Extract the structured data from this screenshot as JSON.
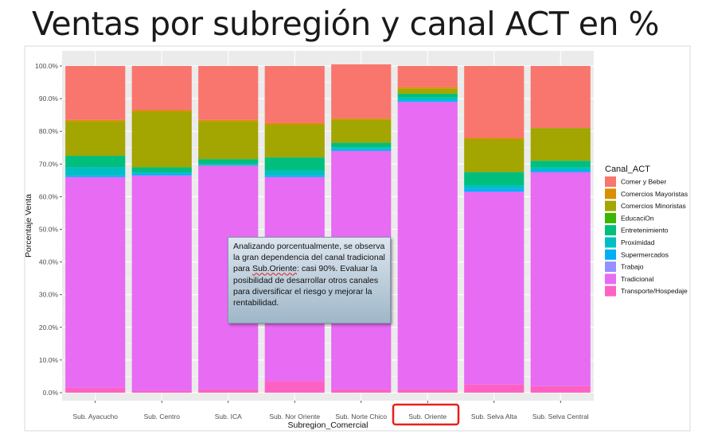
{
  "slide": {
    "title": "Ventas por subregión y canal ACT en %"
  },
  "callout": {
    "text_before": "Analizando porcentualmente, se observa la gran dependencia del canal tradicional para ",
    "text_highlight": "Sub.Oriente",
    "text_after": ": casi 90%. Evaluar la posibilidad de desarrollar otros canales para diversificar el riesgo y mejorar la rentabilidad."
  },
  "chart_data": {
    "type": "bar",
    "stacked": true,
    "xlabel": "Subregion_Comercial",
    "ylabel": "Porcentaje Venta",
    "ylim": [
      0,
      100
    ],
    "yticks": [
      "0.0%",
      "10.0%",
      "20.0%",
      "30.0%",
      "40.0%",
      "50.0%",
      "60.0%",
      "70.0%",
      "80.0%",
      "90.0%",
      "100.0%"
    ],
    "grid": true,
    "legend_title": "Canal_ACT",
    "legend_position": "right",
    "highlighted_category": "Sub. Oriente",
    "highlight_color": "#e8201c",
    "categories": [
      "Sub. Ayacucho",
      "Sub. Centro",
      "Sub. ICA",
      "Sub. Nor Oriente",
      "Sub. Norte Chico",
      "Sub. Oriente",
      "Sub. Selva Alta",
      "Sub. Selva Central"
    ],
    "series": [
      {
        "name": "Transporte/Hospedaje",
        "color": "#ff61c3",
        "values": [
          1.5,
          0.5,
          1.0,
          3.5,
          1.0,
          1.0,
          2.5,
          2.0
        ]
      },
      {
        "name": "Tradicional",
        "color": "#e76bf3",
        "values": [
          64.5,
          66.0,
          68.5,
          62.5,
          73.0,
          88.0,
          59.0,
          65.5
        ]
      },
      {
        "name": "Trabajo",
        "color": "#9590ff",
        "values": [
          0,
          0,
          0,
          0,
          0,
          0,
          0,
          0
        ]
      },
      {
        "name": "Supermercados",
        "color": "#00b0f6",
        "values": [
          0.5,
          0.5,
          0,
          0.5,
          0.5,
          0.5,
          1.0,
          0.5
        ]
      },
      {
        "name": "Proximidad",
        "color": "#00bfc4",
        "values": [
          2.5,
          0.5,
          0.5,
          1.5,
          0.5,
          0.8,
          1.0,
          1.0
        ]
      },
      {
        "name": "Entretenimiento",
        "color": "#00bf7d",
        "values": [
          3.5,
          1.5,
          1.5,
          4.0,
          1.5,
          1.2,
          4.0,
          2.0
        ]
      },
      {
        "name": "EducaciOn",
        "color": "#39b600",
        "values": [
          0,
          0,
          0,
          0,
          0,
          0,
          0,
          0
        ]
      },
      {
        "name": "Comercios Minoristas",
        "color": "#a3a500",
        "values": [
          10.5,
          17.0,
          11.5,
          10.0,
          7.0,
          1.5,
          10.0,
          10.0
        ]
      },
      {
        "name": "Comercios Mayoristas",
        "color": "#d89000",
        "values": [
          0.5,
          0.5,
          0.5,
          0.5,
          0.5,
          0.5,
          0.5,
          0
        ]
      },
      {
        "name": "Comer y Beber",
        "color": "#f8766d",
        "values": [
          16.5,
          13.5,
          16.5,
          17.5,
          16.5,
          6.5,
          22.0,
          19.0
        ]
      }
    ]
  }
}
